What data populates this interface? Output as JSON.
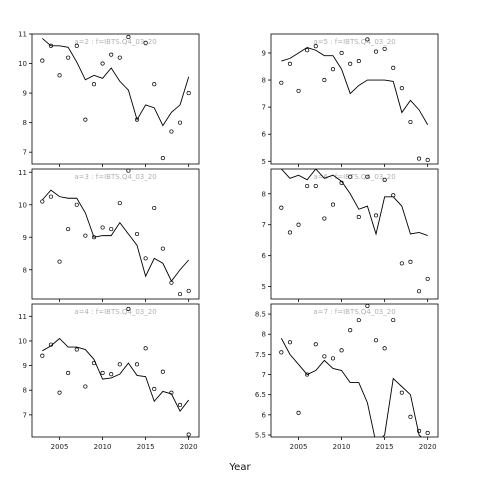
{
  "chart_data": {
    "type": "scatter",
    "xlabel": "Year",
    "panels": [
      {
        "title": "a=2 : f=IBTS.Q4_03_20",
        "ylim": [
          6.6,
          11.0
        ],
        "yticks": [
          7,
          8,
          9,
          10,
          11
        ],
        "xlim": [
          2001.8,
          2021.2
        ],
        "xticks": [
          2005,
          2010,
          2015,
          2020
        ],
        "show_x_tick_labels": false,
        "points": [
          [
            2003,
            10.1
          ],
          [
            2004,
            10.6
          ],
          [
            2005,
            9.6
          ],
          [
            2006,
            10.2
          ],
          [
            2007,
            10.6
          ],
          [
            2008,
            8.1
          ],
          [
            2009,
            9.3
          ],
          [
            2010,
            10.0
          ],
          [
            2011,
            10.3
          ],
          [
            2012,
            10.2
          ],
          [
            2013,
            10.9
          ],
          [
            2014,
            8.1
          ],
          [
            2015,
            10.7
          ],
          [
            2016,
            9.3
          ],
          [
            2017,
            6.8
          ],
          [
            2018,
            7.7
          ],
          [
            2019,
            8.0
          ],
          [
            2020,
            9.0
          ]
        ],
        "line": [
          [
            2003,
            10.85
          ],
          [
            2004,
            10.6
          ],
          [
            2005,
            10.6
          ],
          [
            2006,
            10.55
          ],
          [
            2007,
            10.05
          ],
          [
            2008,
            9.45
          ],
          [
            2009,
            9.6
          ],
          [
            2010,
            9.5
          ],
          [
            2011,
            9.85
          ],
          [
            2012,
            9.4
          ],
          [
            2013,
            9.1
          ],
          [
            2014,
            8.1
          ],
          [
            2015,
            8.6
          ],
          [
            2016,
            8.5
          ],
          [
            2017,
            7.9
          ],
          [
            2018,
            8.35
          ],
          [
            2019,
            8.6
          ],
          [
            2020,
            9.55
          ]
        ]
      },
      {
        "title": "a=5 : f=IBTS.Q4_03_20",
        "ylim": [
          4.9,
          9.7
        ],
        "yticks": [
          5,
          6,
          7,
          8,
          9
        ],
        "xlim": [
          2001.8,
          2021.2
        ],
        "xticks": [
          2005,
          2010,
          2015,
          2020
        ],
        "show_x_tick_labels": false,
        "points": [
          [
            2003,
            7.9
          ],
          [
            2004,
            8.6
          ],
          [
            2005,
            7.6
          ],
          [
            2006,
            9.1
          ],
          [
            2007,
            9.25
          ],
          [
            2008,
            8.0
          ],
          [
            2009,
            8.4
          ],
          [
            2010,
            9.0
          ],
          [
            2011,
            8.6
          ],
          [
            2012,
            8.7
          ],
          [
            2013,
            9.5
          ],
          [
            2014,
            9.05
          ],
          [
            2015,
            9.15
          ],
          [
            2016,
            8.45
          ],
          [
            2017,
            7.7
          ],
          [
            2018,
            6.45
          ],
          [
            2019,
            5.1
          ],
          [
            2020,
            5.05
          ]
        ],
        "line": [
          [
            2003,
            8.7
          ],
          [
            2004,
            8.8
          ],
          [
            2005,
            9.0
          ],
          [
            2006,
            9.2
          ],
          [
            2007,
            9.1
          ],
          [
            2008,
            8.9
          ],
          [
            2009,
            8.9
          ],
          [
            2010,
            8.4
          ],
          [
            2011,
            7.5
          ],
          [
            2012,
            7.8
          ],
          [
            2013,
            8.0
          ],
          [
            2014,
            8.0
          ],
          [
            2015,
            8.0
          ],
          [
            2016,
            7.95
          ],
          [
            2017,
            6.8
          ],
          [
            2018,
            7.25
          ],
          [
            2019,
            6.9
          ],
          [
            2020,
            6.35
          ]
        ]
      },
      {
        "title": "a=3 : f=IBTS.Q4_03_20",
        "ylim": [
          7.1,
          11.1
        ],
        "yticks": [
          8,
          9,
          10,
          11
        ],
        "xlim": [
          2001.8,
          2021.2
        ],
        "xticks": [
          2005,
          2010,
          2015,
          2020
        ],
        "show_x_tick_labels": false,
        "points": [
          [
            2003,
            10.1
          ],
          [
            2004,
            10.25
          ],
          [
            2005,
            8.25
          ],
          [
            2006,
            9.25
          ],
          [
            2007,
            10.0
          ],
          [
            2008,
            9.05
          ],
          [
            2009,
            9.0
          ],
          [
            2010,
            9.3
          ],
          [
            2011,
            9.25
          ],
          [
            2012,
            10.05
          ],
          [
            2013,
            11.05
          ],
          [
            2014,
            9.1
          ],
          [
            2015,
            8.35
          ],
          [
            2016,
            9.9
          ],
          [
            2017,
            8.65
          ],
          [
            2018,
            7.6
          ],
          [
            2019,
            7.25
          ],
          [
            2020,
            7.35
          ]
        ],
        "line": [
          [
            2003,
            10.15
          ],
          [
            2004,
            10.45
          ],
          [
            2005,
            10.25
          ],
          [
            2006,
            10.2
          ],
          [
            2007,
            10.2
          ],
          [
            2008,
            9.75
          ],
          [
            2009,
            9.0
          ],
          [
            2010,
            9.05
          ],
          [
            2011,
            9.05
          ],
          [
            2012,
            9.45
          ],
          [
            2013,
            9.1
          ],
          [
            2014,
            8.75
          ],
          [
            2015,
            7.8
          ],
          [
            2016,
            8.35
          ],
          [
            2017,
            8.2
          ],
          [
            2018,
            7.65
          ],
          [
            2019,
            8.0
          ],
          [
            2020,
            8.3
          ]
        ]
      },
      {
        "title": "a=6 : f=IBTS.Q4_03_20",
        "ylim": [
          4.6,
          8.8
        ],
        "yticks": [
          5,
          6,
          7,
          8
        ],
        "xlim": [
          2001.8,
          2021.2
        ],
        "xticks": [
          2005,
          2010,
          2015,
          2020
        ],
        "show_x_tick_labels": false,
        "points": [
          [
            2003,
            7.55
          ],
          [
            2004,
            6.75
          ],
          [
            2005,
            7.0
          ],
          [
            2006,
            8.25
          ],
          [
            2007,
            8.25
          ],
          [
            2008,
            7.2
          ],
          [
            2009,
            7.65
          ],
          [
            2010,
            8.35
          ],
          [
            2011,
            8.55
          ],
          [
            2012,
            7.25
          ],
          [
            2013,
            8.55
          ],
          [
            2014,
            7.3
          ],
          [
            2015,
            8.45
          ],
          [
            2016,
            7.95
          ],
          [
            2017,
            5.75
          ],
          [
            2018,
            5.8
          ],
          [
            2019,
            4.85
          ],
          [
            2020,
            5.25
          ]
        ],
        "line": [
          [
            2003,
            8.8
          ],
          [
            2004,
            8.5
          ],
          [
            2005,
            8.6
          ],
          [
            2006,
            8.45
          ],
          [
            2007,
            8.8
          ],
          [
            2008,
            8.5
          ],
          [
            2009,
            8.6
          ],
          [
            2010,
            8.4
          ],
          [
            2011,
            8.0
          ],
          [
            2012,
            7.5
          ],
          [
            2013,
            7.6
          ],
          [
            2014,
            6.7
          ],
          [
            2015,
            7.9
          ],
          [
            2016,
            7.9
          ],
          [
            2017,
            7.6
          ],
          [
            2018,
            6.7
          ],
          [
            2019,
            6.75
          ],
          [
            2020,
            6.65
          ]
        ]
      },
      {
        "title": "a=4 : f=IBTS.Q4_03_20",
        "ylim": [
          6.1,
          11.5
        ],
        "yticks": [
          7,
          8,
          9,
          10,
          11
        ],
        "xlim": [
          2001.8,
          2021.2
        ],
        "xticks": [
          2005,
          2010,
          2015,
          2020
        ],
        "show_x_tick_labels": true,
        "points": [
          [
            2003,
            9.4
          ],
          [
            2004,
            9.85
          ],
          [
            2005,
            7.9
          ],
          [
            2006,
            8.7
          ],
          [
            2007,
            9.65
          ],
          [
            2008,
            8.15
          ],
          [
            2009,
            9.1
          ],
          [
            2010,
            8.7
          ],
          [
            2011,
            8.65
          ],
          [
            2012,
            9.05
          ],
          [
            2013,
            11.3
          ],
          [
            2014,
            9.05
          ],
          [
            2015,
            9.7
          ],
          [
            2016,
            8.05
          ],
          [
            2017,
            8.75
          ],
          [
            2018,
            7.9
          ],
          [
            2019,
            7.4
          ],
          [
            2020,
            6.2
          ]
        ],
        "line": [
          [
            2003,
            9.6
          ],
          [
            2004,
            9.8
          ],
          [
            2005,
            10.1
          ],
          [
            2006,
            9.75
          ],
          [
            2007,
            9.75
          ],
          [
            2008,
            9.65
          ],
          [
            2009,
            9.25
          ],
          [
            2010,
            8.45
          ],
          [
            2011,
            8.5
          ],
          [
            2012,
            8.65
          ],
          [
            2013,
            9.1
          ],
          [
            2014,
            8.6
          ],
          [
            2015,
            8.55
          ],
          [
            2016,
            7.55
          ],
          [
            2017,
            7.95
          ],
          [
            2018,
            7.85
          ],
          [
            2019,
            7.15
          ],
          [
            2020,
            7.6
          ]
        ]
      },
      {
        "title": "a=7 : f=IBTS.Q4_03_20",
        "ylim": [
          5.45,
          8.75
        ],
        "yticks": [
          5.5,
          6.0,
          6.5,
          7.0,
          7.5,
          8.0,
          8.5
        ],
        "xlim": [
          2001.8,
          2021.2
        ],
        "xticks": [
          2005,
          2010,
          2015,
          2020
        ],
        "show_x_tick_labels": true,
        "points": [
          [
            2003,
            7.55
          ],
          [
            2004,
            7.8
          ],
          [
            2005,
            6.05
          ],
          [
            2006,
            7.0
          ],
          [
            2007,
            7.75
          ],
          [
            2008,
            7.45
          ],
          [
            2009,
            7.4
          ],
          [
            2010,
            7.6
          ],
          [
            2011,
            8.1
          ],
          [
            2012,
            8.35
          ],
          [
            2013,
            8.7
          ],
          [
            2014,
            7.85
          ],
          [
            2015,
            7.65
          ],
          [
            2016,
            8.35
          ],
          [
            2017,
            6.55
          ],
          [
            2018,
            5.95
          ],
          [
            2019,
            5.6
          ],
          [
            2020,
            5.55
          ]
        ],
        "line": [
          [
            2003,
            7.9
          ],
          [
            2004,
            7.5
          ],
          [
            2005,
            7.25
          ],
          [
            2006,
            7.0
          ],
          [
            2007,
            7.1
          ],
          [
            2008,
            7.35
          ],
          [
            2009,
            7.15
          ],
          [
            2010,
            7.1
          ],
          [
            2011,
            6.8
          ],
          [
            2012,
            6.8
          ],
          [
            2013,
            6.3
          ],
          [
            2014,
            5.3
          ],
          [
            2015,
            5.5
          ],
          [
            2016,
            6.9
          ],
          [
            2017,
            6.7
          ],
          [
            2018,
            6.5
          ],
          [
            2019,
            5.5
          ],
          [
            2020,
            5.3
          ]
        ]
      }
    ]
  }
}
